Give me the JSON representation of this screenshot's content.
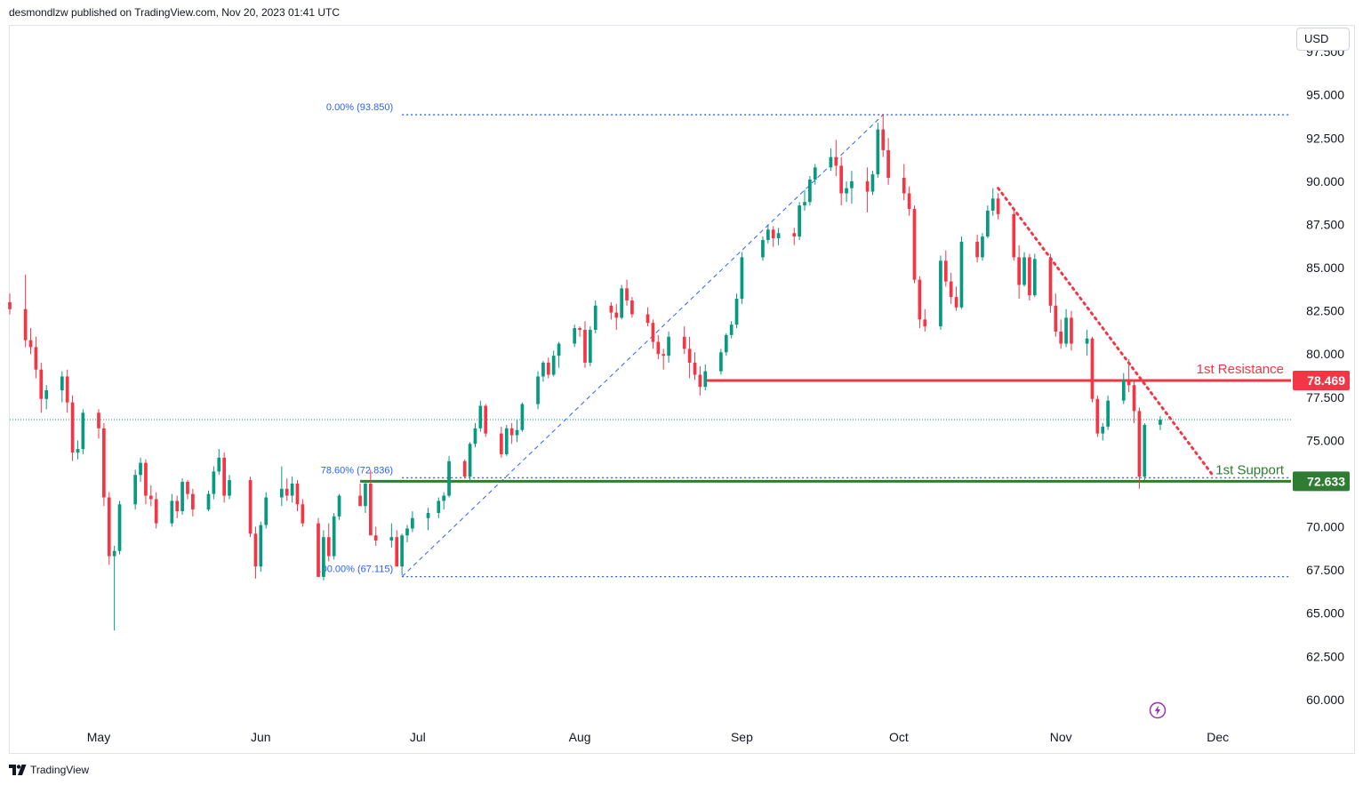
{
  "header": {
    "publisher": "desmondlzw published on TradingView.com, Nov 20, 2023 01:41 UTC"
  },
  "footer": {
    "brand": "TradingView"
  },
  "currency": "USD",
  "colors": {
    "up": "#089981",
    "down": "#f23645",
    "resistance": "#f23645",
    "support": "#2e7d32",
    "fib": "#2962ff",
    "axis_text": "#131722"
  },
  "icons": {
    "logo": "tradingview-logo-icon",
    "event": "lightning-bolt-icon"
  },
  "chart_data": {
    "type": "candlestick",
    "ylim": [
      58.5,
      99
    ],
    "y_ticks": [
      "97.500",
      "95.000",
      "92.500",
      "90.000",
      "87.500",
      "85.000",
      "82.500",
      "80.000",
      "77.500",
      "75.000",
      "72.500",
      "70.000",
      "67.500",
      "65.000",
      "62.500",
      "60.000"
    ],
    "x_ticks": [
      {
        "label": "May",
        "date": "2023-05-01"
      },
      {
        "label": "Jun",
        "date": "2023-06-01"
      },
      {
        "label": "Jul",
        "date": "2023-07-01"
      },
      {
        "label": "Aug",
        "date": "2023-08-01"
      },
      {
        "label": "Sep",
        "date": "2023-09-01"
      },
      {
        "label": "Oct",
        "date": "2023-10-01"
      },
      {
        "label": "Nov",
        "date": "2023-11-01"
      },
      {
        "label": "Dec",
        "date": "2023-12-01"
      }
    ],
    "xlim": [
      "2023-04-14",
      "2023-12-15"
    ],
    "last_close": 76.2,
    "candles": [
      [
        "2023-04-14",
        83.0,
        83.5,
        82.3,
        82.6
      ],
      [
        "2023-04-17",
        82.6,
        84.6,
        80.4,
        80.8
      ],
      [
        "2023-04-18",
        80.8,
        81.5,
        80.0,
        80.4
      ],
      [
        "2023-04-19",
        80.4,
        81.0,
        78.6,
        79.1
      ],
      [
        "2023-04-20",
        79.1,
        79.5,
        76.6,
        77.4
      ],
      [
        "2023-04-21",
        77.4,
        78.2,
        76.8,
        77.9
      ],
      [
        "2023-04-24",
        77.9,
        79.0,
        77.2,
        78.7
      ],
      [
        "2023-04-25",
        78.7,
        79.1,
        76.6,
        77.2
      ],
      [
        "2023-04-26",
        77.2,
        77.6,
        73.8,
        74.3
      ],
      [
        "2023-04-27",
        74.3,
        75.0,
        73.9,
        74.5
      ],
      [
        "2023-04-28",
        74.5,
        76.8,
        74.2,
        76.6
      ],
      [
        "2023-05-01",
        76.6,
        76.8,
        75.1,
        75.7
      ],
      [
        "2023-05-02",
        75.7,
        76.0,
        71.2,
        71.7
      ],
      [
        "2023-05-03",
        71.7,
        72.0,
        67.8,
        68.3
      ],
      [
        "2023-05-04",
        68.3,
        68.9,
        64.0,
        68.6
      ],
      [
        "2023-05-05",
        68.6,
        71.5,
        68.4,
        71.3
      ],
      [
        "2023-05-08",
        71.3,
        73.3,
        71.0,
        73.0
      ],
      [
        "2023-05-09",
        73.0,
        74.0,
        72.6,
        73.7
      ],
      [
        "2023-05-10",
        73.7,
        73.9,
        71.3,
        71.8
      ],
      [
        "2023-05-11",
        71.8,
        72.4,
        71.2,
        71.6
      ],
      [
        "2023-05-12",
        71.6,
        72.0,
        69.9,
        70.2
      ],
      [
        "2023-05-15",
        70.2,
        71.9,
        70.0,
        71.5
      ],
      [
        "2023-05-16",
        71.5,
        71.8,
        70.5,
        70.9
      ],
      [
        "2023-05-17",
        70.9,
        72.8,
        70.7,
        72.6
      ],
      [
        "2023-05-18",
        72.6,
        72.7,
        71.6,
        71.9
      ],
      [
        "2023-05-19",
        71.9,
        72.2,
        70.6,
        71.0
      ],
      [
        "2023-05-22",
        71.0,
        72.1,
        70.9,
        71.9
      ],
      [
        "2023-05-23",
        71.9,
        73.5,
        71.6,
        73.2
      ],
      [
        "2023-05-24",
        73.2,
        74.5,
        73.0,
        74.0
      ],
      [
        "2023-05-25",
        74.0,
        74.3,
        71.4,
        71.8
      ],
      [
        "2023-05-26",
        71.8,
        73.0,
        71.6,
        72.7
      ],
      [
        "2023-05-30",
        72.7,
        72.9,
        69.4,
        69.6
      ],
      [
        "2023-05-31",
        69.6,
        70.0,
        67.0,
        67.7
      ],
      [
        "2023-06-01",
        67.7,
        70.3,
        67.4,
        70.1
      ],
      [
        "2023-06-02",
        70.1,
        72.0,
        69.9,
        71.7
      ],
      [
        "2023-06-05",
        71.7,
        73.5,
        71.2,
        72.2
      ],
      [
        "2023-06-06",
        72.2,
        72.8,
        71.5,
        71.8
      ],
      [
        "2023-06-07",
        71.8,
        72.9,
        71.4,
        72.5
      ],
      [
        "2023-06-08",
        72.5,
        72.7,
        70.9,
        71.3
      ],
      [
        "2023-06-09",
        71.3,
        71.6,
        70.0,
        70.2
      ],
      [
        "2023-06-12",
        70.2,
        70.5,
        67.1,
        67.1
      ],
      [
        "2023-06-13",
        67.1,
        69.8,
        66.9,
        69.4
      ],
      [
        "2023-06-14",
        69.4,
        70.2,
        68.0,
        68.3
      ],
      [
        "2023-06-15",
        68.3,
        70.8,
        68.1,
        70.6
      ],
      [
        "2023-06-16",
        70.6,
        71.9,
        70.4,
        71.8
      ],
      [
        "2023-06-20",
        71.8,
        72.5,
        71.2,
        71.2
      ],
      [
        "2023-06-21",
        71.2,
        72.6,
        70.8,
        72.5
      ],
      [
        "2023-06-22",
        72.5,
        73.3,
        69.6,
        69.5
      ],
      [
        "2023-06-23",
        69.5,
        70.0,
        68.9,
        69.2
      ],
      [
        "2023-06-26",
        69.2,
        70.2,
        68.8,
        69.4
      ],
      [
        "2023-06-27",
        69.4,
        69.8,
        67.7,
        67.7
      ],
      [
        "2023-06-28",
        67.7,
        69.6,
        67.2,
        69.5
      ],
      [
        "2023-06-29",
        69.5,
        70.1,
        69.1,
        69.9
      ],
      [
        "2023-06-30",
        69.9,
        70.9,
        69.7,
        70.5
      ],
      [
        "2023-07-03",
        70.5,
        71.1,
        69.8,
        70.8
      ],
      [
        "2023-07-05",
        70.8,
        71.7,
        70.5,
        71.5
      ],
      [
        "2023-07-06",
        71.5,
        72.0,
        71.0,
        71.8
      ],
      [
        "2023-07-07",
        71.8,
        74.1,
        71.7,
        73.8
      ],
      [
        "2023-07-10",
        73.8,
        73.9,
        72.8,
        72.9
      ],
      [
        "2023-07-11",
        72.9,
        74.9,
        72.6,
        74.8
      ],
      [
        "2023-07-12",
        74.8,
        76.0,
        74.6,
        75.7
      ],
      [
        "2023-07-13",
        75.7,
        77.3,
        75.5,
        77.0
      ],
      [
        "2023-07-14",
        77.0,
        77.1,
        75.2,
        75.4
      ],
      [
        "2023-07-17",
        75.4,
        75.8,
        74.0,
        74.2
      ],
      [
        "2023-07-18",
        74.2,
        75.9,
        74.1,
        75.7
      ],
      [
        "2023-07-19",
        75.7,
        76.0,
        74.8,
        75.3
      ],
      [
        "2023-07-20",
        75.3,
        76.2,
        74.9,
        75.6
      ],
      [
        "2023-07-21",
        75.6,
        77.2,
        75.5,
        77.1
      ],
      [
        "2023-07-24",
        77.1,
        79.0,
        76.8,
        78.7
      ],
      [
        "2023-07-25",
        78.7,
        79.6,
        78.4,
        79.5
      ],
      [
        "2023-07-26",
        79.5,
        79.8,
        78.6,
        78.8
      ],
      [
        "2023-07-27",
        78.8,
        80.2,
        78.7,
        79.9
      ],
      [
        "2023-07-28",
        79.9,
        80.7,
        79.2,
        80.6
      ],
      [
        "2023-07-31",
        80.6,
        81.7,
        80.4,
        81.5
      ],
      [
        "2023-08-01",
        81.5,
        81.6,
        81.0,
        81.4
      ],
      [
        "2023-08-02",
        81.4,
        81.9,
        79.2,
        79.5
      ],
      [
        "2023-08-03",
        79.5,
        81.6,
        79.3,
        81.4
      ],
      [
        "2023-08-04",
        81.4,
        83.1,
        81.2,
        82.8
      ],
      [
        "2023-08-07",
        82.8,
        83.0,
        82.0,
        82.4
      ],
      [
        "2023-08-08",
        82.4,
        82.9,
        81.4,
        82.1
      ],
      [
        "2023-08-09",
        82.1,
        84.0,
        82.0,
        83.8
      ],
      [
        "2023-08-10",
        83.8,
        84.3,
        82.8,
        83.1
      ],
      [
        "2023-08-11",
        83.1,
        83.3,
        82.1,
        82.3
      ],
      [
        "2023-08-14",
        82.3,
        82.7,
        81.6,
        81.8
      ],
      [
        "2023-08-15",
        81.8,
        82.0,
        80.3,
        80.7
      ],
      [
        "2023-08-16",
        80.7,
        81.1,
        79.7,
        80.0
      ],
      [
        "2023-08-17",
        80.0,
        80.3,
        79.1,
        79.9
      ],
      [
        "2023-08-18",
        79.9,
        81.3,
        79.5,
        81.0
      ],
      [
        "2023-08-21",
        81.0,
        81.6,
        80.0,
        80.3
      ],
      [
        "2023-08-22",
        80.3,
        81.0,
        78.6,
        79.5
      ],
      [
        "2023-08-23",
        79.5,
        80.1,
        78.5,
        78.8
      ],
      [
        "2023-08-24",
        78.8,
        79.3,
        77.6,
        78.1
      ],
      [
        "2023-08-25",
        78.1,
        79.4,
        77.9,
        79.0
      ],
      [
        "2023-08-28",
        79.0,
        80.3,
        78.8,
        80.1
      ],
      [
        "2023-08-29",
        80.1,
        81.2,
        79.9,
        81.1
      ],
      [
        "2023-08-30",
        81.1,
        81.9,
        80.9,
        81.7
      ],
      [
        "2023-08-31",
        81.7,
        83.5,
        81.5,
        83.2
      ],
      [
        "2023-09-01",
        83.2,
        85.9,
        82.9,
        85.6
      ],
      [
        "2023-09-05",
        85.6,
        86.8,
        85.4,
        86.6
      ],
      [
        "2023-09-06",
        86.6,
        87.5,
        86.4,
        87.2
      ],
      [
        "2023-09-07",
        87.2,
        87.4,
        86.2,
        86.7
      ],
      [
        "2023-09-08",
        86.7,
        87.3,
        86.3,
        87.0
      ],
      [
        "2023-09-11",
        87.0,
        87.3,
        86.3,
        86.8
      ],
      [
        "2023-09-12",
        86.8,
        88.8,
        86.6,
        88.6
      ],
      [
        "2023-09-13",
        88.6,
        89.5,
        88.3,
        88.8
      ],
      [
        "2023-09-14",
        88.8,
        90.3,
        88.6,
        90.1
      ],
      [
        "2023-09-15",
        90.1,
        91.0,
        89.8,
        90.8
      ],
      [
        "2023-09-18",
        90.8,
        91.9,
        90.6,
        91.4
      ],
      [
        "2023-09-19",
        91.4,
        92.4,
        90.3,
        90.9
      ],
      [
        "2023-09-20",
        90.9,
        91.4,
        88.6,
        89.3
      ],
      [
        "2023-09-21",
        89.3,
        90.0,
        88.8,
        89.6
      ],
      [
        "2023-09-22",
        89.6,
        90.6,
        88.7,
        90.0
      ],
      [
        "2023-09-25",
        90.0,
        90.8,
        88.2,
        89.4
      ],
      [
        "2023-09-26",
        89.4,
        90.6,
        89.2,
        90.4
      ],
      [
        "2023-09-27",
        90.4,
        93.4,
        90.2,
        93.0
      ],
      [
        "2023-09-28",
        93.0,
        93.9,
        91.4,
        91.8
      ],
      [
        "2023-09-29",
        91.8,
        92.5,
        89.8,
        90.2
      ],
      [
        "2023-10-02",
        90.2,
        91.0,
        88.9,
        89.3
      ],
      [
        "2023-10-03",
        89.3,
        89.7,
        88.0,
        88.4
      ],
      [
        "2023-10-04",
        88.4,
        88.6,
        84.1,
        84.3
      ],
      [
        "2023-10-05",
        84.3,
        84.5,
        81.5,
        82.0
      ],
      [
        "2023-10-06",
        82.0,
        82.6,
        81.3,
        81.6
      ],
      [
        "2023-10-09",
        81.6,
        85.7,
        81.4,
        85.4
      ],
      [
        "2023-10-10",
        85.4,
        86.0,
        83.9,
        84.2
      ],
      [
        "2023-10-11",
        84.2,
        84.7,
        82.9,
        83.3
      ],
      [
        "2023-10-12",
        83.3,
        83.9,
        82.5,
        82.7
      ],
      [
        "2023-10-13",
        82.7,
        86.8,
        82.6,
        86.5
      ],
      [
        "2023-10-16",
        86.5,
        86.9,
        85.3,
        85.6
      ],
      [
        "2023-10-17",
        85.6,
        87.0,
        85.4,
        86.8
      ],
      [
        "2023-10-18",
        86.8,
        88.6,
        86.7,
        88.3
      ],
      [
        "2023-10-19",
        88.3,
        89.6,
        88.0,
        89.0
      ],
      [
        "2023-10-20",
        89.0,
        89.3,
        87.8,
        88.1
      ],
      [
        "2023-10-23",
        88.1,
        88.4,
        85.4,
        85.6
      ],
      [
        "2023-10-24",
        85.6,
        86.3,
        83.2,
        84.0
      ],
      [
        "2023-10-25",
        84.0,
        85.9,
        83.9,
        85.6
      ],
      [
        "2023-10-26",
        85.6,
        85.8,
        83.1,
        83.4
      ],
      [
        "2023-10-27",
        83.4,
        85.8,
        83.3,
        85.5
      ],
      [
        "2023-10-30",
        85.5,
        85.8,
        82.4,
        82.8
      ],
      [
        "2023-10-31",
        82.8,
        83.5,
        81.0,
        81.3
      ],
      [
        "2023-11-01",
        81.3,
        82.0,
        80.3,
        80.6
      ],
      [
        "2023-11-02",
        80.6,
        82.6,
        80.4,
        82.1
      ],
      [
        "2023-11-03",
        82.1,
        82.5,
        80.2,
        80.6
      ],
      [
        "2023-11-06",
        80.6,
        81.4,
        79.9,
        80.9
      ],
      [
        "2023-11-07",
        80.9,
        81.0,
        77.2,
        77.4
      ],
      [
        "2023-11-08",
        77.4,
        77.6,
        75.2,
        75.4
      ],
      [
        "2023-11-09",
        75.4,
        76.0,
        75.0,
        75.8
      ],
      [
        "2023-11-10",
        75.8,
        77.6,
        75.6,
        77.3
      ],
      [
        "2023-11-13",
        77.3,
        78.9,
        77.1,
        78.5
      ],
      [
        "2023-11-14",
        78.5,
        79.7,
        77.8,
        78.2
      ],
      [
        "2023-11-15",
        78.2,
        78.5,
        76.0,
        76.7
      ],
      [
        "2023-11-16",
        76.7,
        76.9,
        72.2,
        72.9
      ],
      [
        "2023-11-17",
        72.9,
        76.0,
        72.7,
        75.9
      ],
      [
        "2023-11-20",
        75.9,
        76.4,
        75.6,
        76.2
      ]
    ],
    "levels": {
      "resistance": {
        "label": "1st Resistance",
        "value": 78.469,
        "value_label": "78.469",
        "from": "2023-08-25"
      },
      "support": {
        "label": "1st Support",
        "value": 72.633,
        "value_label": "72.633",
        "from": "2023-06-20"
      }
    },
    "fib": {
      "labels": [
        "0.00% (93.850)",
        "78.60% (72.836)",
        "100.00% (67.115)"
      ],
      "levels": [
        93.85,
        72.836,
        67.115
      ],
      "from": "2023-06-28",
      "to": "2023-09-28"
    },
    "trendline": {
      "from": [
        "2023-10-20",
        89.6
      ],
      "to": [
        "2023-11-30",
        73.0
      ]
    }
  }
}
